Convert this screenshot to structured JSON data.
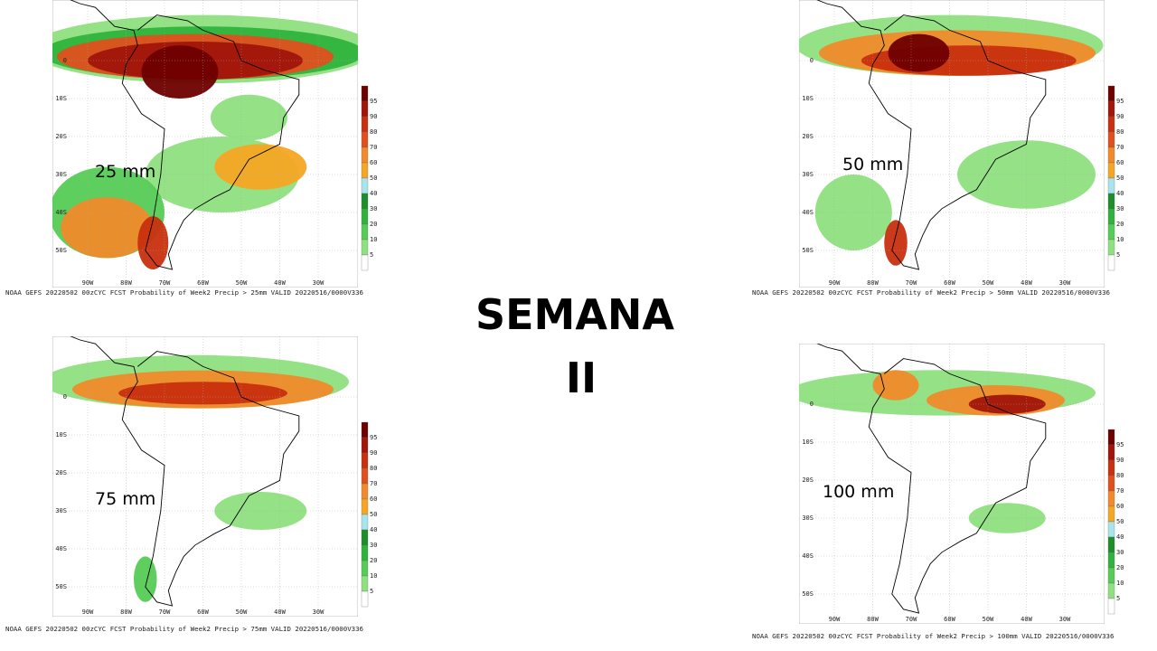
{
  "title": [
    "SEMANA",
    "II"
  ],
  "colorbar": {
    "labels": [
      95,
      90,
      80,
      70,
      60,
      50,
      40,
      30,
      20,
      10,
      5
    ],
    "colors": [
      "#6e0000",
      "#a1150b",
      "#c8300f",
      "#e0501c",
      "#f08a2a",
      "#f5a623",
      "#a8e4ec",
      "#1c8f2a",
      "#2fb33c",
      "#55cc55",
      "#8fe07f",
      "#ffffff"
    ]
  },
  "panels": [
    {
      "label": "25 mm",
      "caption": "NOAA GEFS 20220502 00zCYC FCST Probability of Week2 Precip > 25mm  VALID 20220516/0000V336",
      "lat_labels": [
        "0",
        "10S",
        "20S",
        "30S",
        "40S",
        "50S"
      ],
      "lon_labels": [
        "90W",
        "80W",
        "70W",
        "60W",
        "50W",
        "40W",
        "30W"
      ]
    },
    {
      "label": "50 mm",
      "caption": "NOAA GEFS 20220502 00zCYC FCST Probability of Week2 Precip > 50mm  VALID 20220516/0000V336",
      "lat_labels": [
        "0",
        "10S",
        "20S",
        "30S",
        "40S",
        "50S"
      ],
      "lon_labels": [
        "90W",
        "80W",
        "70W",
        "60W",
        "50W",
        "40W",
        "30W"
      ]
    },
    {
      "label": "75 mm",
      "caption": "NOAA GEFS 20220502 00zCYC FCST Probability of Week2 Precip > 75mm  VALID 20220516/0000V336",
      "lat_labels": [
        "0",
        "10S",
        "20S",
        "30S",
        "40S",
        "50S"
      ],
      "lon_labels": [
        "90W",
        "80W",
        "70W",
        "60W",
        "50W",
        "40W",
        "30W"
      ]
    },
    {
      "label": "100 mm",
      "caption": "NOAA GEFS 20220502 00zCYC FCST Probability of Week2 Precip > 100mm  VALID 20220516/0000V336",
      "lat_labels": [
        "0",
        "10S",
        "20S",
        "30S",
        "40S",
        "50S"
      ],
      "lon_labels": [
        "90W",
        "80W",
        "70W",
        "60W",
        "50W",
        "40W",
        "30W"
      ]
    }
  ]
}
